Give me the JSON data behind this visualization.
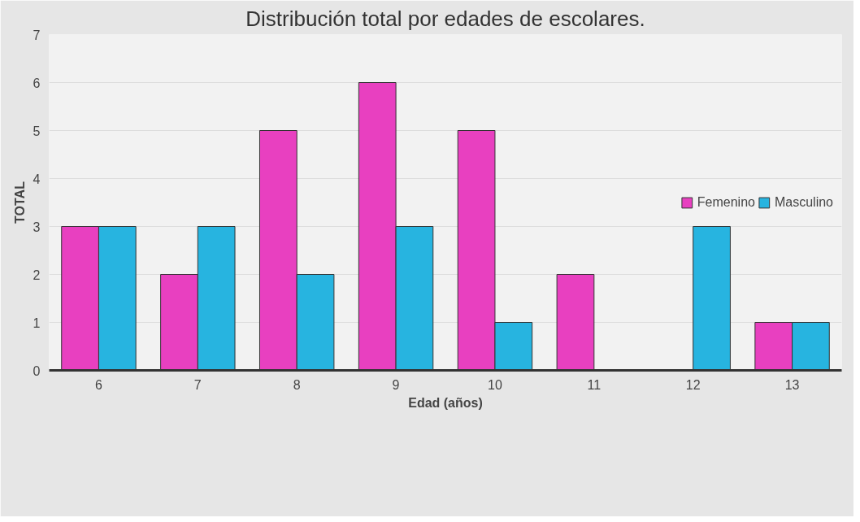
{
  "chart_data": {
    "type": "bar",
    "title": "Distribución total por edades de escolares.",
    "xlabel": "Edad (años)",
    "ylabel": "TOTAL",
    "categories": [
      "6",
      "7",
      "8",
      "9",
      "10",
      "11",
      "12",
      "13"
    ],
    "series": [
      {
        "name": "Femenino",
        "color": "#e840c0",
        "values": [
          3,
          2,
          5,
          6,
          5,
          2,
          null,
          1
        ]
      },
      {
        "name": "Masculino",
        "color": "#27b4e0",
        "values": [
          3,
          3,
          2,
          3,
          1,
          null,
          3,
          1
        ]
      }
    ],
    "ylim": [
      0,
      7
    ],
    "yticks": [
      0,
      1,
      2,
      3,
      4,
      5,
      6,
      7
    ],
    "grid": "y",
    "legend": "right"
  }
}
